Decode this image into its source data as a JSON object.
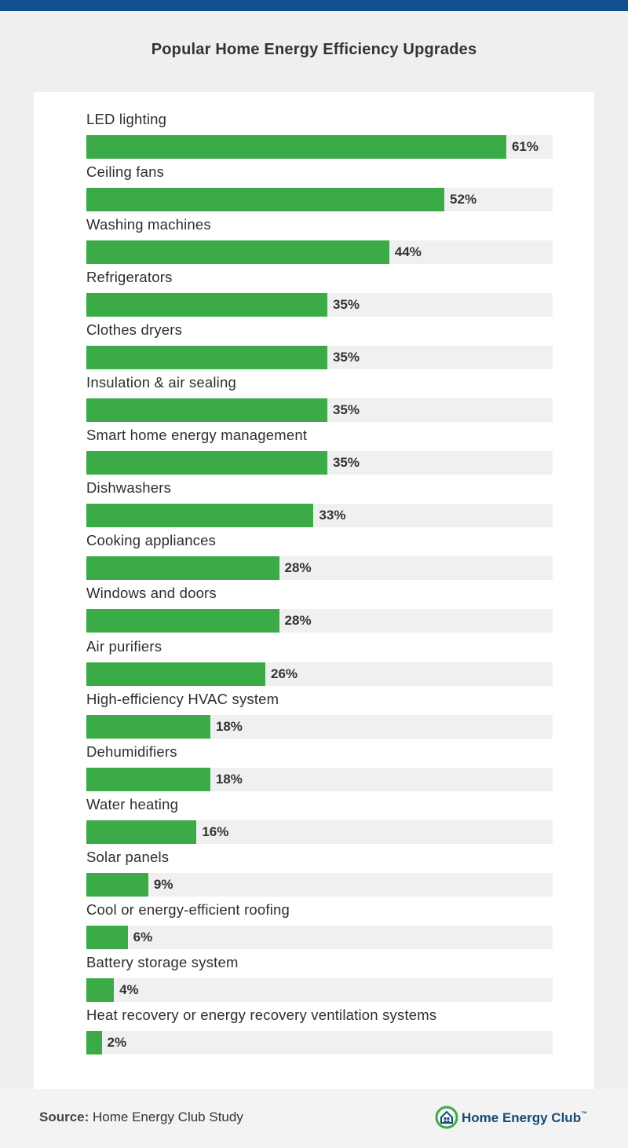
{
  "colors": {
    "top_bar": "#134f8c",
    "bar": "#3aab47",
    "track": "#f0f0f0",
    "background": "#efefef",
    "brand_blue": "#134a78",
    "brand_green": "#3aab47"
  },
  "chart_data": {
    "type": "bar",
    "orientation": "horizontal",
    "title": "Popular Home Energy Efficiency Upgrades",
    "value_suffix": "%",
    "xlim": [
      0,
      100
    ],
    "grid": false,
    "legend": "none",
    "categories": [
      "LED lighting",
      "Ceiling fans",
      "Washing machines",
      "Refrigerators",
      "Clothes dryers",
      "Insulation & air sealing",
      "Smart home energy management",
      "Dishwashers",
      "Cooking appliances",
      "Windows and doors",
      "Air purifiers",
      "High-efficiency HVAC system",
      "Dehumidifiers",
      "Water heating",
      "Solar panels",
      "Cool or energy-efficient roofing",
      "Battery storage system",
      "Heat recovery or energy recovery ventilation systems"
    ],
    "values": [
      61,
      52,
      44,
      35,
      35,
      35,
      35,
      33,
      28,
      28,
      26,
      18,
      18,
      16,
      9,
      6,
      4,
      2
    ],
    "value_labels": [
      "61%",
      "52%",
      "44%",
      "35%",
      "35%",
      "35%",
      "35%",
      "33%",
      "28%",
      "28%",
      "26%",
      "18%",
      "18%",
      "16%",
      "9%",
      "6%",
      "4%",
      "2%"
    ]
  },
  "footer": {
    "source_label": "Source:",
    "source_text": " Home Energy Club Study",
    "brand_name": "Home Energy Club",
    "brand_tm": "™",
    "brand_logo_icon": "house-leaf-icon"
  }
}
